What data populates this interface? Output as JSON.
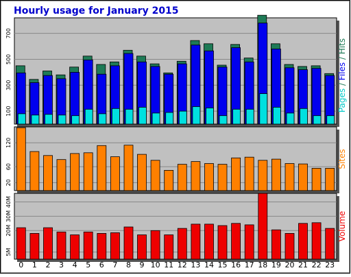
{
  "chart_data": {
    "type": "bar",
    "title": "Hourly usage for January 2015",
    "categories": [
      "0",
      "1",
      "2",
      "3",
      "4",
      "5",
      "6",
      "7",
      "8",
      "9",
      "10",
      "11",
      "12",
      "13",
      "14",
      "15",
      "16",
      "17",
      "18",
      "19",
      "20",
      "21",
      "22",
      "23"
    ],
    "panels": [
      {
        "id": "traffic",
        "ylim": [
          0,
          820
        ],
        "y_ticks": [
          100,
          300,
          500,
          700
        ],
        "series": [
          {
            "name": "Hits",
            "color": "#1e7a56",
            "values": [
              450,
              345,
              410,
              380,
              440,
              525,
              460,
              480,
              570,
              525,
              465,
              395,
              485,
              645,
              620,
              455,
              615,
              510,
              840,
              620,
              460,
              445,
              450,
              390
            ]
          },
          {
            "name": "Files",
            "color": "#0000ee",
            "values": [
              395,
              320,
              375,
              350,
              400,
              495,
              385,
              450,
              545,
              480,
              445,
              385,
              465,
              610,
              565,
              440,
              590,
              480,
              780,
              580,
              435,
              420,
              430,
              375
            ]
          },
          {
            "name": "Pages",
            "color": "#00e0e0",
            "values": [
              80,
              70,
              75,
              70,
              65,
              115,
              80,
              120,
              115,
              130,
              85,
              90,
              100,
              135,
              125,
              65,
              115,
              115,
              235,
              130,
              85,
              120,
              65,
              65
            ]
          }
        ],
        "side_label": [
          {
            "text": "Pages",
            "color": "#00c8c8"
          },
          {
            "text": " / ",
            "color": "#1e7a56"
          },
          {
            "text": "Files",
            "color": "#0000ee"
          },
          {
            "text": " / ",
            "color": "#1e7a56"
          },
          {
            "text": "Hits",
            "color": "#1e7a56"
          }
        ]
      },
      {
        "id": "sites",
        "ylim": [
          0,
          160
        ],
        "y_ticks": [
          20,
          60,
          120
        ],
        "series": [
          {
            "name": "Sites",
            "color": "#ff8000",
            "values": [
              158,
              98,
              88,
              78,
              93,
              95,
              113,
              85,
              114,
              91,
              76,
              51,
              66,
              73,
              68,
              66,
              82,
              84,
              76,
              79,
              68,
              67,
              56,
              56
            ]
          }
        ],
        "side_label": [
          {
            "text": "Sites",
            "color": "#ff8000"
          }
        ]
      },
      {
        "id": "volume",
        "ylim": [
          0,
          46
        ],
        "y_ticks_labels": [
          "5M",
          "20M",
          "30M",
          "40M"
        ],
        "y_ticks": [
          5,
          20,
          30,
          40
        ],
        "series": [
          {
            "name": "Volume",
            "color": "#ee0000",
            "values": [
              22,
              18,
              22,
              19,
              17,
              19,
              18,
              18.5,
              22.5,
              17,
              20,
              17,
              21.5,
              24.5,
              24.5,
              23.5,
              25,
              24,
              46,
              20.5,
              18,
              25,
              25.5,
              21.5
            ]
          }
        ],
        "side_label": [
          {
            "text": "Volume",
            "color": "#ee0000"
          }
        ]
      }
    ]
  }
}
